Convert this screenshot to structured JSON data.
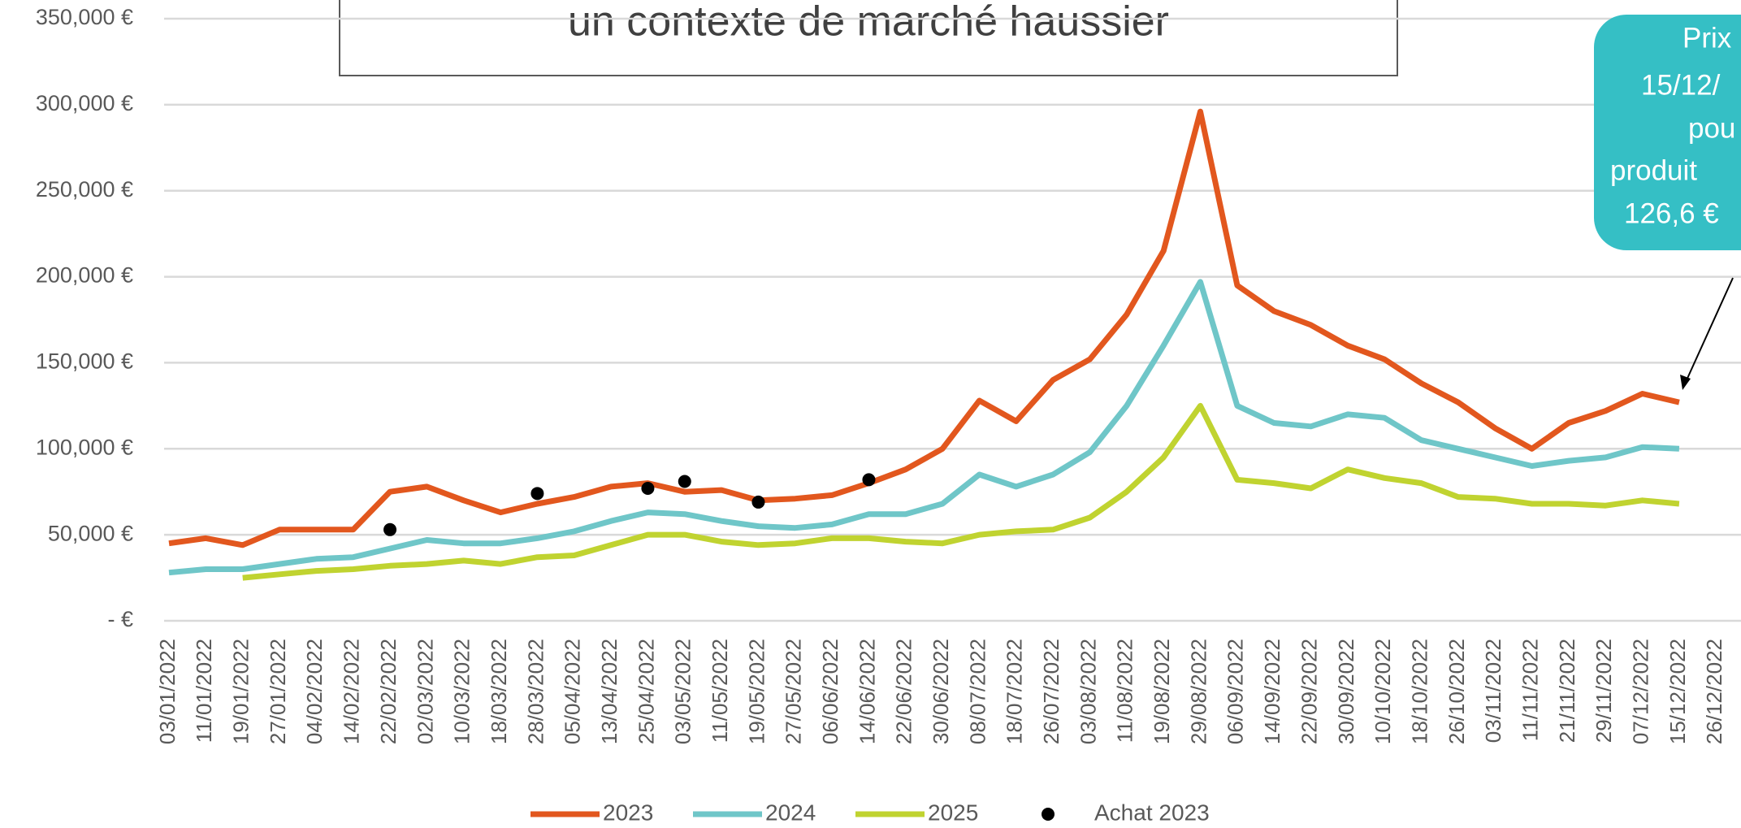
{
  "chart_data": {
    "type": "line",
    "title": "un contexte de marché haussier",
    "annotation": [
      "Prix",
      "15/12/",
      "pou",
      "produit",
      "126,6 €"
    ],
    "categories": [
      "03/01/2022",
      "11/01/2022",
      "19/01/2022",
      "27/01/2022",
      "04/02/2022",
      "14/02/2022",
      "22/02/2022",
      "02/03/2022",
      "10/03/2022",
      "18/03/2022",
      "28/03/2022",
      "05/04/2022",
      "13/04/2022",
      "25/04/2022",
      "03/05/2022",
      "11/05/2022",
      "19/05/2022",
      "27/05/2022",
      "06/06/2022",
      "14/06/2022",
      "22/06/2022",
      "30/06/2022",
      "08/07/2022",
      "18/07/2022",
      "26/07/2022",
      "03/08/2022",
      "11/08/2022",
      "19/08/2022",
      "29/08/2022",
      "06/09/2022",
      "14/09/2022",
      "22/09/2022",
      "30/09/2022",
      "10/10/2022",
      "18/10/2022",
      "26/10/2022",
      "03/11/2022",
      "11/11/2022",
      "21/11/2022",
      "29/11/2022",
      "07/12/2022",
      "15/12/2022",
      "26/12/2022"
    ],
    "series": [
      {
        "name": "2023",
        "color": "#e2571e",
        "values": [
          45000,
          48000,
          44000,
          53000,
          53000,
          53000,
          75000,
          78000,
          70000,
          63000,
          68000,
          72000,
          78000,
          80000,
          75000,
          76000,
          70000,
          71000,
          73000,
          80000,
          88000,
          100000,
          128000,
          116000,
          140000,
          152000,
          178000,
          215000,
          296000,
          195000,
          180000,
          172000,
          160000,
          152000,
          138000,
          127000,
          112000,
          100000,
          115000,
          122000,
          132000,
          127000,
          null
        ]
      },
      {
        "name": "2024",
        "color": "#6fc6c8",
        "values": [
          28000,
          30000,
          30000,
          33000,
          36000,
          37000,
          42000,
          47000,
          45000,
          45000,
          48000,
          52000,
          58000,
          63000,
          62000,
          58000,
          55000,
          54000,
          56000,
          62000,
          62000,
          68000,
          85000,
          78000,
          85000,
          98000,
          125000,
          160000,
          197000,
          125000,
          115000,
          113000,
          120000,
          118000,
          105000,
          100000,
          95000,
          90000,
          93000,
          95000,
          101000,
          100000,
          null
        ]
      },
      {
        "name": "2025",
        "color": "#c0d330",
        "values": [
          null,
          null,
          25000,
          27000,
          29000,
          30000,
          32000,
          33000,
          35000,
          33000,
          37000,
          38000,
          44000,
          50000,
          50000,
          46000,
          44000,
          45000,
          48000,
          48000,
          46000,
          45000,
          50000,
          52000,
          53000,
          60000,
          75000,
          95000,
          125000,
          82000,
          80000,
          77000,
          88000,
          83000,
          80000,
          72000,
          71000,
          68000,
          68000,
          67000,
          70000,
          68000,
          null
        ]
      },
      {
        "name": "Achat 2023",
        "color": "#000000",
        "type": "scatter",
        "values": [
          null,
          null,
          null,
          null,
          null,
          null,
          53000,
          null,
          null,
          null,
          74000,
          null,
          null,
          77000,
          81000,
          null,
          69000,
          null,
          null,
          82000,
          null,
          null,
          null,
          null,
          null,
          null,
          null,
          null,
          null,
          null,
          null,
          null,
          null,
          null,
          null,
          null,
          null,
          null,
          null,
          null,
          null,
          null,
          null
        ]
      }
    ],
    "ylim": [
      0,
      350000
    ],
    "yticks": [
      {
        "value": 0,
        "label": "-  €"
      },
      {
        "value": 50000,
        "label": "50,000 €"
      },
      {
        "value": 100000,
        "label": "100,000 €"
      },
      {
        "value": 150000,
        "label": "150,000 €"
      },
      {
        "value": 200000,
        "label": "200,000 €"
      },
      {
        "value": 250000,
        "label": "250,000 €"
      },
      {
        "value": 300000,
        "label": "300,000 €"
      },
      {
        "value": 350000,
        "label": "350,000 €"
      }
    ],
    "grid": true
  }
}
